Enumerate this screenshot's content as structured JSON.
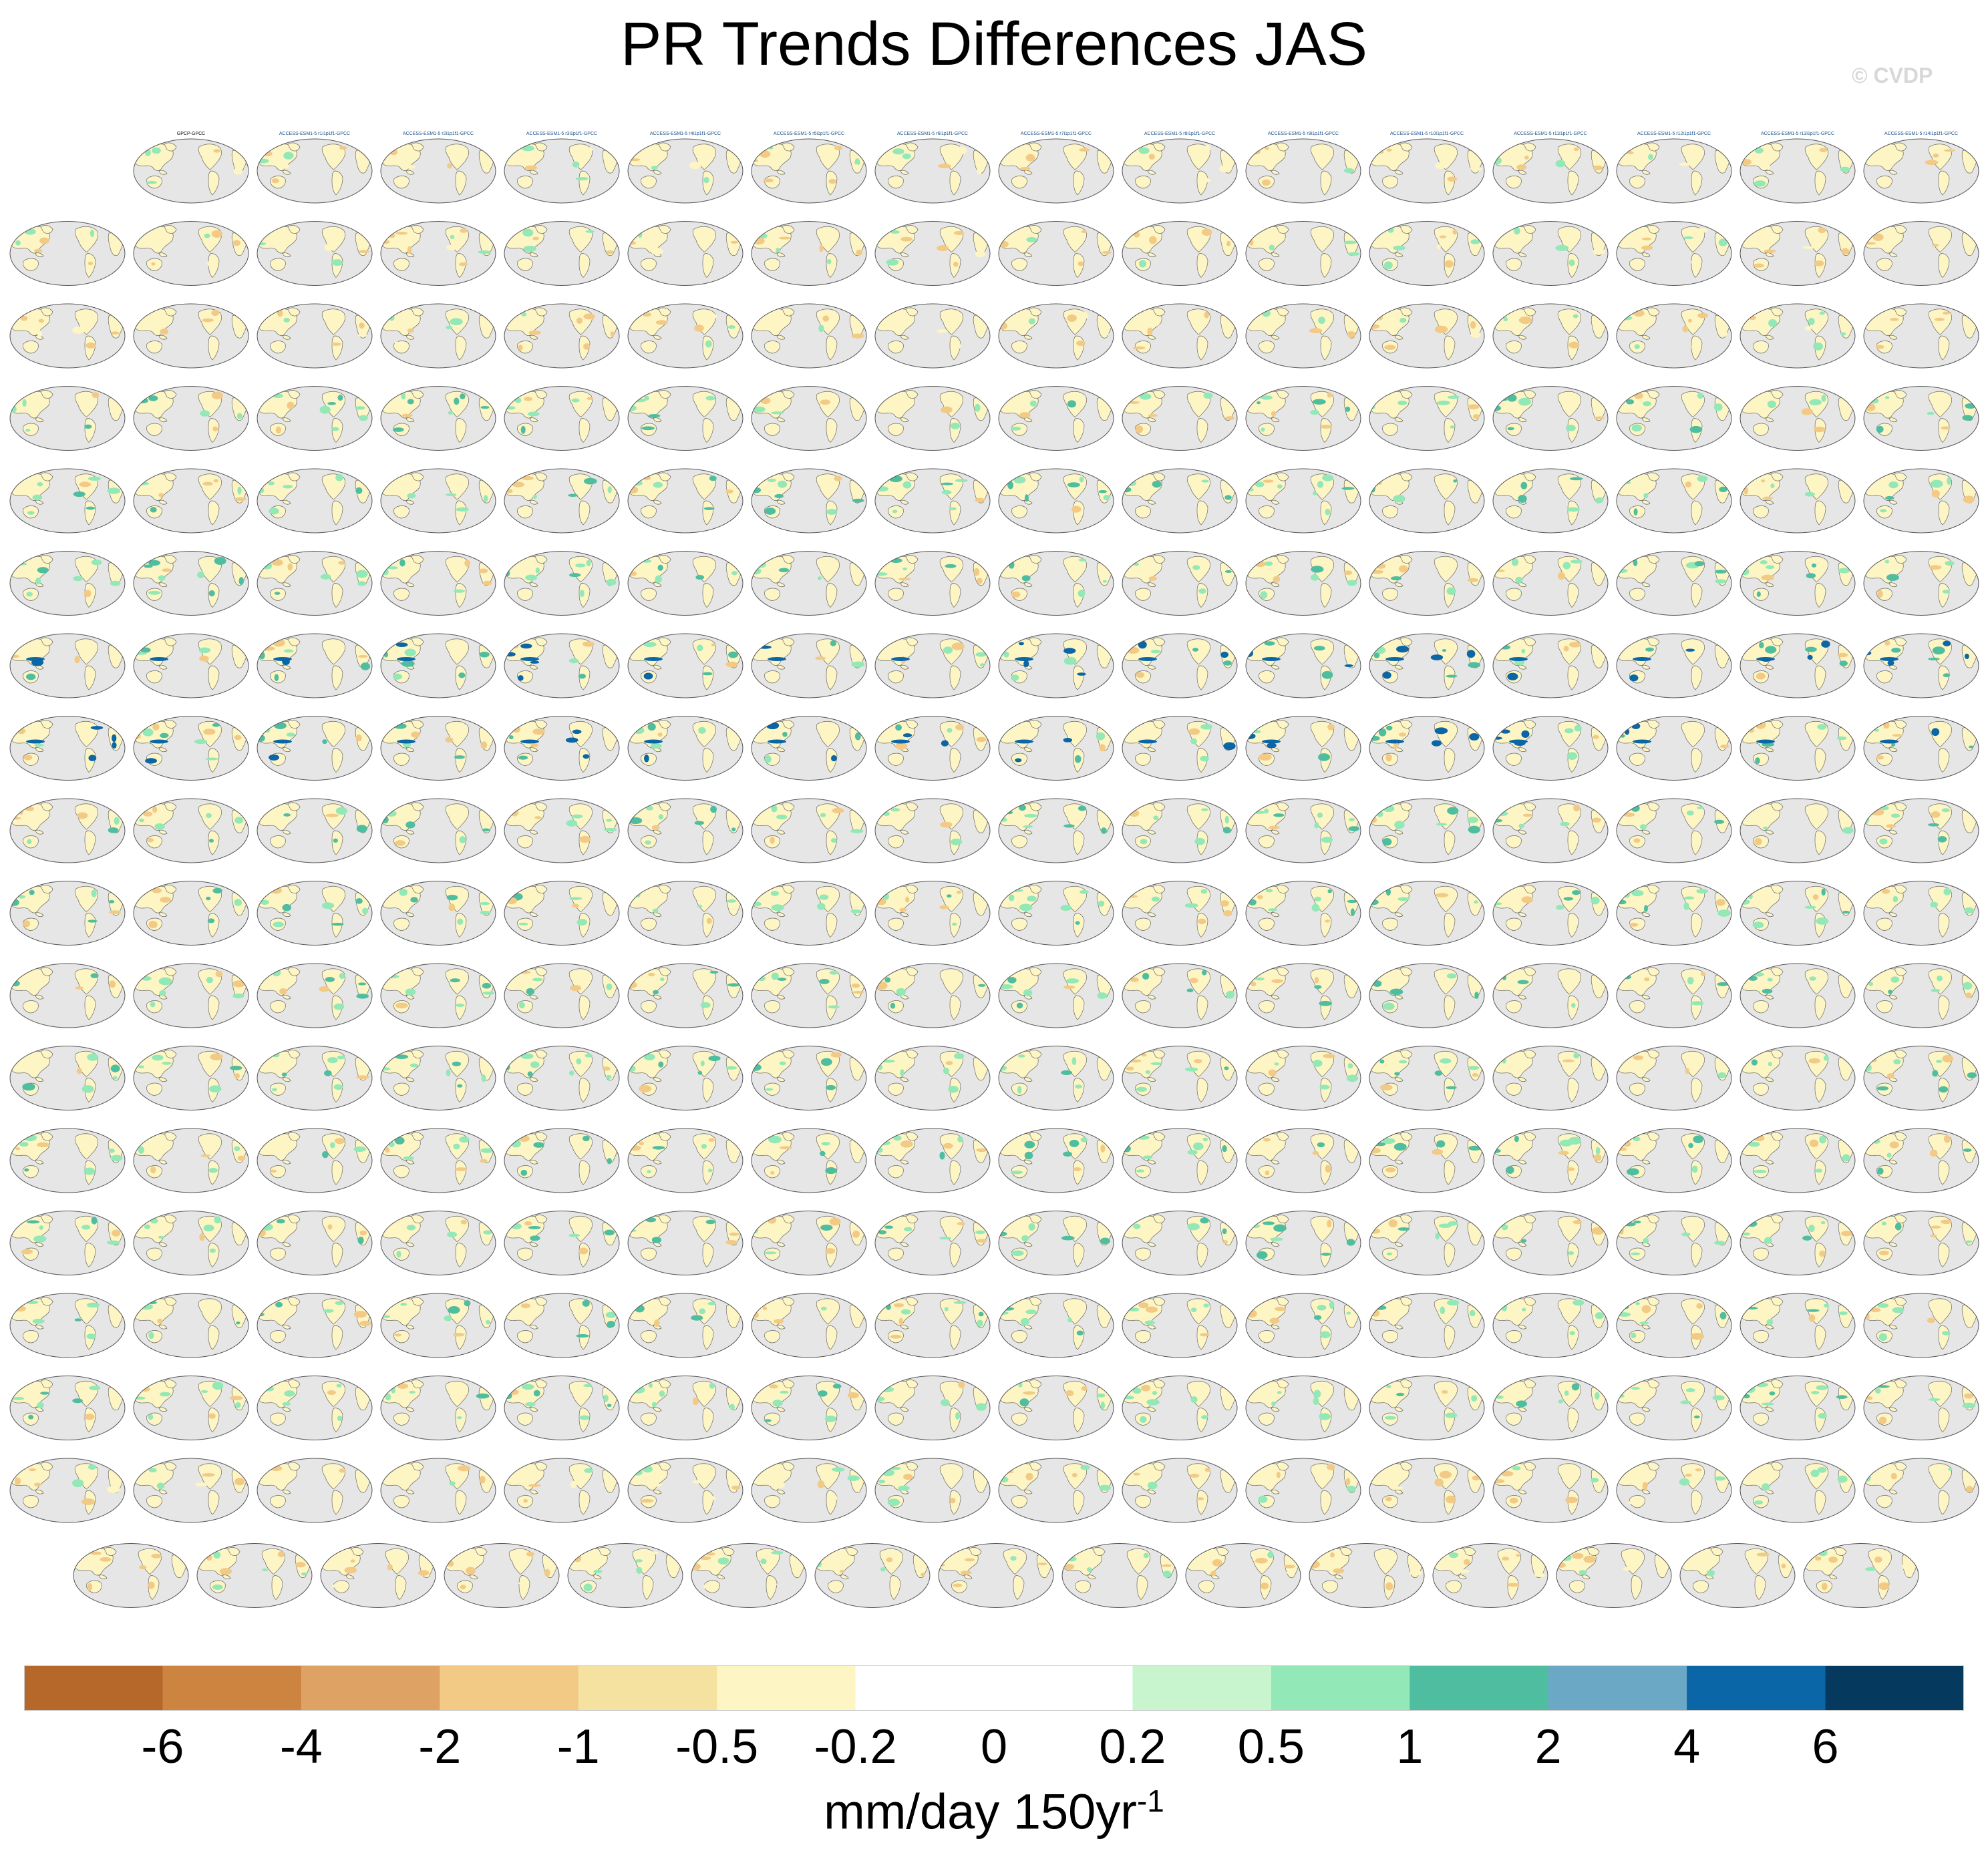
{
  "title": "PR Trends Differences JAS",
  "watermark": "© CVDP",
  "panels": {
    "label_first": "GPCP-GPCC",
    "label_template_note": "",
    "label_rows": [
      [
        "GPCP-GPCC",
        "ACCESS-ESM1-5 r1i1p1f1-GPCC",
        "ACCESS-ESM1-5 r2i1p1f1-GPCC",
        "ACCESS-ESM1-5 r3i1p1f1-GPCC",
        "ACCESS-ESM1-5 r4i1p1f1-GPCC",
        "ACCESS-ESM1-5 r5i1p1f1-GPCC",
        "ACCESS-ESM1-5 r6i1p1f1-GPCC",
        "ACCESS-ESM1-5 r7i1p1f1-GPCC",
        "ACCESS-ESM1-5 r8i1p1f1-GPCC",
        "ACCESS-ESM1-5 r9i1p1f1-GPCC",
        "ACCESS-ESM1-5 r10i1p1f1-GPCC",
        "ACCESS-ESM1-5 r11i1p1f1-GPCC",
        "ACCESS-ESM1-5 r12i1p1f1-GPCC",
        "ACCESS-ESM1-5 r13i1p1f1-GPCC",
        "ACCESS-ESM1-5 r14i1p1f1-GPCC"
      ]
    ],
    "label_colors": {
      "obs": "#000000",
      "access": "#1a4f8a",
      "canesm": "#5a6f8f",
      "cesm1_light": "#c8b070",
      "cesm1": "#8a5a2a",
      "cesm2": "#7b6bc0",
      "csiro": "#c0a878"
    }
  },
  "colorbar": {
    "colors": [
      "#b5682a",
      "#cd8440",
      "#dfa265",
      "#f2ca86",
      "#f5e1a0",
      "#fdf5c3",
      "#ffffff",
      "#ffffff",
      "#c8f5cd",
      "#93e8b7",
      "#4fbea0",
      "#6aa8c6",
      "#0a66a6",
      "#053a5e"
    ],
    "tick_labels": [
      "-6",
      "-4",
      "-2",
      "-1",
      "-0.5",
      "-0.2",
      "0",
      "0.2",
      "0.5",
      "1",
      "2",
      "4",
      "6"
    ],
    "units_main": "mm/day 150yr",
    "units_sup": "-1"
  },
  "map_colors": {
    "ocean": "#e6e6e6",
    "outline": "#555555",
    "coast": "#6a6a6a",
    "wet": "#93e8b7",
    "wet_strong": "#4fbea0",
    "wet_blue": "#0a66a6",
    "dry": "#f2ca86",
    "dry_light": "#fdf5c3"
  }
}
